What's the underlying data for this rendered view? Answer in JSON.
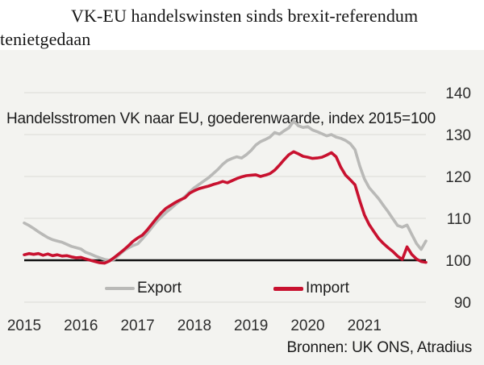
{
  "headline": {
    "line1": "VK-EU handelswinsten sinds brexit-referendum",
    "line2": "tenietgedaan"
  },
  "panel": {
    "title": "Handelsstromen VK naar EU, goederenwaarde, index 2015=100",
    "source": "Bronnen: UK ONS, Atradius"
  },
  "legend": {
    "export_label": "Export",
    "import_label": "Import"
  },
  "chart_data": {
    "type": "line",
    "title": "Handelsstromen VK naar EU, goederenwaarde, index 2015=100",
    "x_start": "2015-01",
    "points_per_month": 1,
    "points_per_year": 12,
    "xticks": [
      "2015",
      "2016",
      "2017",
      "2018",
      "2019",
      "2020",
      "2021"
    ],
    "ylim": [
      90,
      140
    ],
    "yticks": [
      90,
      100,
      110,
      120,
      130,
      140
    ],
    "baseline": 100,
    "grid": true,
    "legend_position": "bottom",
    "colors": {
      "panel_bg": "#f3f3f0",
      "grid": "#dbdbd6",
      "baseline": "#111111",
      "export": "#b9b9b7",
      "import": "#c8112f"
    },
    "series": [
      {
        "name": "Export",
        "color": "#b9b9b7",
        "values": [
          108.9,
          108.3,
          107.6,
          106.8,
          106.1,
          105.4,
          104.9,
          104.6,
          104.3,
          103.8,
          103.3,
          103.0,
          102.7,
          101.9,
          101.5,
          101.0,
          100.6,
          100.2,
          100.0,
          100.2,
          101.2,
          102.2,
          102.9,
          103.5,
          103.9,
          105.1,
          106.4,
          107.8,
          109.2,
          110.3,
          111.4,
          112.3,
          113.3,
          114.2,
          115.2,
          116.3,
          117.3,
          118.1,
          118.9,
          119.7,
          120.7,
          121.7,
          122.9,
          123.8,
          124.3,
          124.7,
          124.4,
          125.2,
          126.2,
          127.5,
          128.3,
          128.8,
          129.4,
          130.5,
          130.1,
          130.9,
          131.6,
          133.2,
          132.1,
          131.7,
          131.9,
          131.1,
          130.7,
          130.2,
          129.7,
          130.0,
          129.4,
          129.1,
          128.6,
          127.8,
          126.4,
          122.5,
          119.4,
          117.3,
          116.0,
          114.7,
          113.1,
          111.6,
          109.9,
          108.3,
          107.9,
          108.4,
          106.2,
          104.0,
          102.6,
          104.6
        ]
      },
      {
        "name": "Import",
        "color": "#c8112f",
        "values": [
          101.3,
          101.6,
          101.4,
          101.6,
          101.2,
          101.5,
          101.1,
          101.3,
          101.0,
          101.1,
          100.8,
          100.6,
          100.7,
          100.3,
          100.0,
          99.7,
          99.4,
          99.3,
          99.8,
          100.6,
          101.5,
          102.4,
          103.4,
          104.5,
          105.3,
          106.0,
          107.2,
          108.6,
          110.0,
          111.3,
          112.4,
          113.1,
          113.8,
          114.4,
          114.9,
          116.0,
          116.6,
          117.1,
          117.4,
          117.7,
          118.1,
          118.4,
          118.8,
          118.5,
          119.0,
          119.5,
          119.9,
          120.2,
          120.3,
          120.4,
          120.0,
          120.3,
          120.7,
          121.5,
          122.7,
          124.0,
          125.2,
          125.9,
          125.4,
          124.8,
          124.6,
          124.3,
          124.4,
          124.6,
          125.1,
          125.7,
          124.7,
          122.2,
          120.3,
          119.2,
          118.0,
          114.2,
          110.8,
          108.5,
          106.8,
          105.2,
          104.0,
          103.0,
          102.1,
          101.0,
          100.2,
          103.2,
          101.4,
          100.3,
          99.7,
          99.5
        ]
      }
    ]
  }
}
